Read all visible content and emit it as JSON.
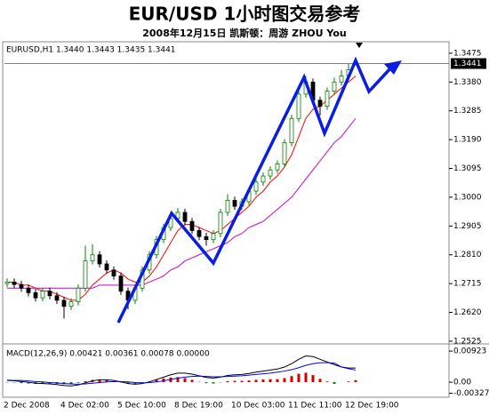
{
  "header": {
    "title": "EUR/USD 1小时图交易参考",
    "subtitle": "2008年12月15日   凯斯顿：周游 ZHOU You"
  },
  "chart_data": [
    {
      "type": "candlestick",
      "title": "EURUSD,H1  1.3440 1.3443 1.3435 1.3441",
      "categories": [
        "2 Dec 2008",
        null,
        null,
        null,
        null,
        null,
        null,
        null,
        "4 Dec 02:00",
        null,
        null,
        null,
        null,
        null,
        null,
        null,
        "5 Dec 10:00",
        null,
        null,
        null,
        null,
        null,
        null,
        null,
        "8 Dec 19:00",
        null,
        null,
        null,
        null,
        null,
        null,
        null,
        "10 Dec 03:00",
        null,
        null,
        null,
        null,
        null,
        null,
        null,
        "11 Dec 11:00",
        null,
        null,
        null,
        null,
        null,
        null,
        null,
        "12 Dec 19:00",
        null
      ],
      "open": [
        1.2715,
        1.272,
        1.2712,
        1.27,
        1.2685,
        1.2668,
        1.269,
        1.2675,
        1.266,
        1.264,
        1.2655,
        1.27,
        1.279,
        1.281,
        1.278,
        1.276,
        1.274,
        1.269,
        1.266,
        1.27,
        1.276,
        1.281,
        1.286,
        1.29,
        1.293,
        1.295,
        1.292,
        1.289,
        1.287,
        1.286,
        1.288,
        1.295,
        1.299,
        1.297,
        1.2985,
        1.302,
        1.305,
        1.307,
        1.309,
        1.311,
        1.318,
        1.326,
        1.334,
        1.338,
        1.332,
        1.33,
        1.335,
        1.338,
        1.34,
        1.344
      ],
      "high": [
        1.2732,
        1.2732,
        1.2724,
        1.2712,
        1.2697,
        1.2702,
        1.2702,
        1.2687,
        1.2672,
        1.2667,
        1.2712,
        1.284,
        1.2845,
        1.2822,
        1.2792,
        1.2772,
        1.2752,
        1.2702,
        1.2712,
        1.2772,
        1.2822,
        1.2872,
        1.2912,
        1.2942,
        1.2965,
        1.2962,
        1.2932,
        1.2902,
        1.2882,
        1.2892,
        1.2962,
        1.301,
        1.3002,
        1.2997,
        1.3032,
        1.3062,
        1.3082,
        1.3102,
        1.3122,
        1.3192,
        1.3272,
        1.336,
        1.34,
        1.3392,
        1.3332,
        1.3362,
        1.3395,
        1.342,
        1.344,
        1.3443
      ],
      "low": [
        1.2703,
        1.27,
        1.2688,
        1.2673,
        1.2656,
        1.2656,
        1.2663,
        1.2648,
        1.26,
        1.2628,
        1.2643,
        1.2688,
        1.2778,
        1.2768,
        1.2748,
        1.2728,
        1.2678,
        1.263,
        1.2648,
        1.2688,
        1.2748,
        1.2798,
        1.2848,
        1.2888,
        1.2918,
        1.2908,
        1.2878,
        1.2858,
        1.284,
        1.2848,
        1.2868,
        1.2938,
        1.2958,
        1.2958,
        1.2973,
        1.3008,
        1.3038,
        1.3058,
        1.3078,
        1.3098,
        1.3168,
        1.3248,
        1.3328,
        1.3308,
        1.327,
        1.3288,
        1.3338,
        1.3368,
        1.3388,
        1.3435
      ],
      "close": [
        1.272,
        1.2712,
        1.27,
        1.2685,
        1.2668,
        1.269,
        1.2675,
        1.266,
        1.264,
        1.2655,
        1.27,
        1.279,
        1.281,
        1.278,
        1.276,
        1.274,
        1.269,
        1.266,
        1.27,
        1.276,
        1.281,
        1.286,
        1.29,
        1.293,
        1.295,
        1.292,
        1.289,
        1.287,
        1.286,
        1.288,
        1.295,
        1.299,
        1.297,
        1.2985,
        1.302,
        1.305,
        1.307,
        1.309,
        1.311,
        1.318,
        1.326,
        1.334,
        1.338,
        1.332,
        1.33,
        1.335,
        1.338,
        1.34,
        1.342,
        1.3441
      ],
      "up_color": "#008000",
      "down_color": "#000000",
      "overlays": [
        {
          "color": "#ff0000",
          "values": [
            1.272,
            1.272,
            1.271,
            1.271,
            1.27,
            1.269,
            1.269,
            1.268,
            1.267,
            1.266,
            1.266,
            1.268,
            1.271,
            1.273,
            1.275,
            1.276,
            1.275,
            1.273,
            1.272,
            1.272,
            1.274,
            1.277,
            1.281,
            1.285,
            1.289,
            1.291,
            1.291,
            1.29,
            1.289,
            1.288,
            1.289,
            1.291,
            1.293,
            1.295,
            1.297,
            1.3,
            1.302,
            1.305,
            1.307,
            1.31,
            1.314,
            1.32,
            1.326,
            1.329,
            1.33,
            1.332,
            1.334,
            1.336,
            1.338,
            1.34
          ]
        },
        {
          "color": "#cc00cc",
          "values": [
            1.27,
            1.27,
            1.27,
            1.27,
            1.27,
            1.27,
            1.27,
            1.27,
            1.27,
            1.27,
            1.27,
            1.27,
            1.27,
            1.271,
            1.271,
            1.271,
            1.271,
            1.271,
            1.271,
            1.271,
            1.272,
            1.273,
            1.274,
            1.276,
            1.277,
            1.279,
            1.28,
            1.281,
            1.282,
            1.283,
            1.284,
            1.285,
            1.287,
            1.288,
            1.29,
            1.291,
            1.292,
            1.294,
            1.296,
            1.298,
            1.3,
            1.303,
            1.306,
            1.309,
            1.312,
            1.315,
            1.318,
            1.32,
            1.323,
            1.326
          ]
        }
      ],
      "last_price": 1.3441,
      "ylim": [
        1.2519,
        1.3507
      ],
      "yticks": [
        1.3475,
        {
          "value": 1.338,
          "label": "1.3380"
        },
        1.3285,
        {
          "value": 1.319,
          "label": "1.3190"
        },
        1.3095,
        {
          "value": 1.3,
          "label": "1.3000"
        },
        1.2905,
        {
          "value": 1.281,
          "label": "1.2810"
        },
        1.2715,
        {
          "value": 1.262,
          "label": "1.2620"
        },
        1.2525
      ]
    },
    {
      "type": "macd",
      "title": "MACD(12,26,9) 0.00421 0.00361 0.00078 0.00000",
      "histogram": [
        -0.0001,
        -0.0001,
        -0.0003,
        -0.0004,
        -0.0005,
        -0.0005,
        -0.0004,
        -0.0005,
        -0.0006,
        -0.0006,
        -0.0002,
        0.0003,
        0.0007,
        0.0008,
        0.0006,
        0.0003,
        -0.0001,
        -0.0005,
        -0.0005,
        -0.0002,
        0.0002,
        0.0007,
        0.0011,
        0.0014,
        0.0015,
        0.0012,
        0.0007,
        0.0001,
        -0.0003,
        -0.0004,
        -0.0001,
        0.0003,
        0.0004,
        0.0004,
        0.0005,
        0.0007,
        0.0008,
        0.0009,
        0.0009,
        0.0012,
        0.0018,
        0.0025,
        0.0028,
        0.0021,
        0.001,
        0.0002,
        -0.0005,
        0.0,
        0.0002,
        0.0006
      ],
      "pos_color": "#d00000",
      "neg_color": "#008000",
      "series": [
        {
          "color": "#000000",
          "values": [
            0.0005,
            0.0004,
            0.0002,
            0.0,
            -0.0003,
            -0.0004,
            -0.0005,
            -0.0007,
            -0.001,
            -0.0011,
            -0.0008,
            -0.0002,
            0.0004,
            0.0007,
            0.0007,
            0.0005,
            0.0001,
            -0.0004,
            -0.0006,
            -0.0004,
            0.0001,
            0.0008,
            0.0015,
            0.0022,
            0.0027,
            0.0027,
            0.0024,
            0.0019,
            0.0014,
            0.0012,
            0.0015,
            0.002,
            0.0022,
            0.0023,
            0.0026,
            0.003,
            0.0033,
            0.0036,
            0.0039,
            0.0045,
            0.0055,
            0.0068,
            0.0078,
            0.0076,
            0.0068,
            0.006,
            0.0052,
            0.0045,
            0.0042,
            0.0042
          ]
        },
        {
          "color": "#0000ff",
          "values": [
            0.0006,
            0.0005,
            0.0005,
            0.0004,
            0.0002,
            0.0001,
            -0.0001,
            -0.0002,
            -0.0004,
            -0.0005,
            -0.0006,
            -0.0005,
            -0.0003,
            -0.0001,
            0.0001,
            0.0002,
            0.0002,
            0.0001,
            -0.0001,
            -0.0002,
            -0.0001,
            0.0001,
            0.0004,
            0.0008,
            0.0012,
            0.0015,
            0.0017,
            0.0018,
            0.0017,
            0.0016,
            0.0016,
            0.0017,
            0.0018,
            0.0019,
            0.0021,
            0.0023,
            0.0025,
            0.0027,
            0.003,
            0.0033,
            0.0037,
            0.0043,
            0.005,
            0.0055,
            0.0058,
            0.0058,
            0.0057,
            0.0045,
            0.004,
            0.0036
          ]
        }
      ],
      "ylim": [
        -0.0042,
        0.0111
      ],
      "yticks": [
        0.00923,
        {
          "value": 0,
          "label": "0.00"
        },
        -0.00327
      ]
    }
  ]
}
